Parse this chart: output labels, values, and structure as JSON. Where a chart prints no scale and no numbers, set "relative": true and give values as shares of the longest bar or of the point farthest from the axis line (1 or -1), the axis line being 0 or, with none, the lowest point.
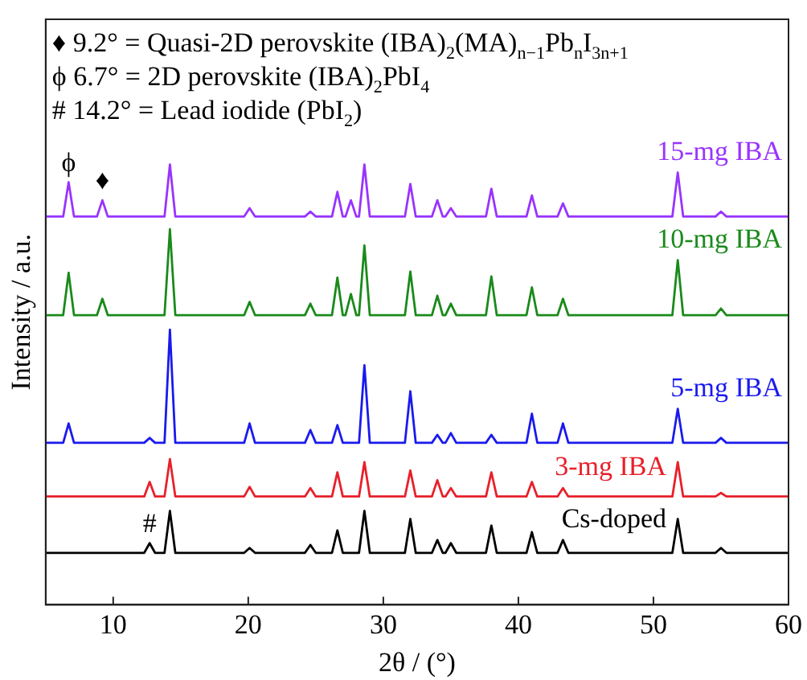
{
  "chart_data": {
    "type": "line",
    "relative": true,
    "xlabel": "2θ / (°)",
    "ylabel": "Intensity / a.u.",
    "xlim": [
      5,
      60
    ],
    "xticks": [
      10,
      20,
      30,
      40,
      50,
      60
    ],
    "grid": false,
    "legend": false,
    "marker": "none",
    "line_style": "solid",
    "x": [
      5,
      6.3,
      6.7,
      7.1,
      8.8,
      9.2,
      9.6,
      12.3,
      12.7,
      13.1,
      13.8,
      14.2,
      14.6,
      19.7,
      20.1,
      20.5,
      24.2,
      24.6,
      25,
      26.2,
      26.6,
      27,
      27.2,
      27.6,
      28,
      28.2,
      28.6,
      29,
      31.6,
      32,
      32.4,
      33.6,
      34,
      34.4,
      34.6,
      35,
      35.4,
      37.6,
      38,
      38.4,
      40.6,
      41,
      41.4,
      42.9,
      43.3,
      43.7,
      51.4,
      51.8,
      52.2,
      54.6,
      55,
      55.4,
      60
    ],
    "series": [
      {
        "name": "15-mg IBA",
        "color": "#9933ff",
        "values": [
          0.882,
          0.882,
          0.96,
          0.882,
          0.882,
          0.919,
          0.882,
          0.882,
          0.882,
          0.882,
          0.882,
          1,
          0.882,
          0.882,
          0.901,
          0.882,
          0.882,
          0.893,
          0.882,
          0.882,
          0.938,
          0.882,
          0.882,
          0.919,
          0.882,
          0.882,
          1,
          0.882,
          0.882,
          0.956,
          0.882,
          0.882,
          0.919,
          0.882,
          0.882,
          0.901,
          0.882,
          0.882,
          0.945,
          0.882,
          0.882,
          0.93,
          0.882,
          0.882,
          0.912,
          0.882,
          0.882,
          0.982,
          0.882,
          0.882,
          0.893,
          0.882,
          0.882
        ]
      },
      {
        "name": "10-mg IBA",
        "color": "#1a8a1a",
        "values": [
          0.658,
          0.658,
          0.754,
          0.658,
          0.658,
          0.695,
          0.658,
          0.658,
          0.658,
          0.658,
          0.658,
          0.853,
          0.658,
          0.658,
          0.688,
          0.658,
          0.658,
          0.684,
          0.658,
          0.658,
          0.743,
          0.658,
          0.658,
          0.706,
          0.658,
          0.658,
          0.816,
          0.658,
          0.658,
          0.757,
          0.658,
          0.658,
          0.702,
          0.658,
          0.658,
          0.684,
          0.658,
          0.658,
          0.746,
          0.658,
          0.658,
          0.721,
          0.658,
          0.658,
          0.695,
          0.658,
          0.658,
          0.783,
          0.658,
          0.658,
          0.673,
          0.658,
          0.658
        ]
      },
      {
        "name": "5-mg IBA",
        "color": "#1a1aee",
        "values": [
          0.368,
          0.368,
          0.412,
          0.368,
          0.368,
          0.368,
          0.368,
          0.368,
          0.379,
          0.368,
          0.368,
          0.625,
          0.368,
          0.368,
          0.412,
          0.368,
          0.368,
          0.397,
          0.368,
          0.368,
          0.408,
          0.368,
          0.368,
          0.368,
          0.368,
          0.368,
          0.544,
          0.368,
          0.368,
          0.485,
          0.368,
          0.368,
          0.386,
          0.368,
          0.368,
          0.39,
          0.368,
          0.368,
          0.386,
          0.368,
          0.368,
          0.434,
          0.368,
          0.368,
          0.412,
          0.368,
          0.368,
          0.445,
          0.368,
          0.368,
          0.379,
          0.368,
          0.368
        ]
      },
      {
        "name": "3-mg IBA",
        "color": "#e8202a",
        "values": [
          0.246,
          0.246,
          0.246,
          0.246,
          0.246,
          0.246,
          0.246,
          0.246,
          0.279,
          0.246,
          0.246,
          0.331,
          0.246,
          0.246,
          0.268,
          0.246,
          0.246,
          0.265,
          0.246,
          0.246,
          0.301,
          0.246,
          0.246,
          0.246,
          0.246,
          0.246,
          0.324,
          0.246,
          0.246,
          0.305,
          0.246,
          0.246,
          0.283,
          0.246,
          0.246,
          0.265,
          0.246,
          0.246,
          0.301,
          0.246,
          0.246,
          0.279,
          0.246,
          0.246,
          0.265,
          0.246,
          0.246,
          0.324,
          0.246,
          0.246,
          0.254,
          0.246,
          0.246
        ]
      },
      {
        "name": "Cs-doped",
        "color": "#000000",
        "values": [
          0.118,
          0.118,
          0.118,
          0.118,
          0.118,
          0.118,
          0.118,
          0.118,
          0.14,
          0.118,
          0.118,
          0.213,
          0.118,
          0.118,
          0.129,
          0.118,
          0.118,
          0.136,
          0.118,
          0.118,
          0.169,
          0.118,
          0.118,
          0.118,
          0.118,
          0.118,
          0.213,
          0.118,
          0.118,
          0.195,
          0.118,
          0.118,
          0.147,
          0.118,
          0.118,
          0.14,
          0.118,
          0.118,
          0.18,
          0.118,
          0.118,
          0.165,
          0.118,
          0.118,
          0.147,
          0.118,
          0.118,
          0.195,
          0.118,
          0.118,
          0.129,
          0.118,
          0.118
        ]
      }
    ],
    "annotations": [
      "♦ 9.2° = Quasi-2D perovskite (IBA)$_{2}$(MA)$_{n−1}$Pb$_{n}$I$_{3n+1}$",
      "ϕ 6.7° = 2D perovskite (IBA)$_{2}$PbI$_{4}$",
      "# 14.2° = Lead iodide (PbI$_{2}$)",
      {
        "text": "ϕ",
        "x": 6.7,
        "y": 0.96
      },
      {
        "text": "♦",
        "x": 9.2,
        "y": 0.919
      },
      {
        "text": "#",
        "x": 12.7,
        "y": 0.14
      }
    ]
  }
}
